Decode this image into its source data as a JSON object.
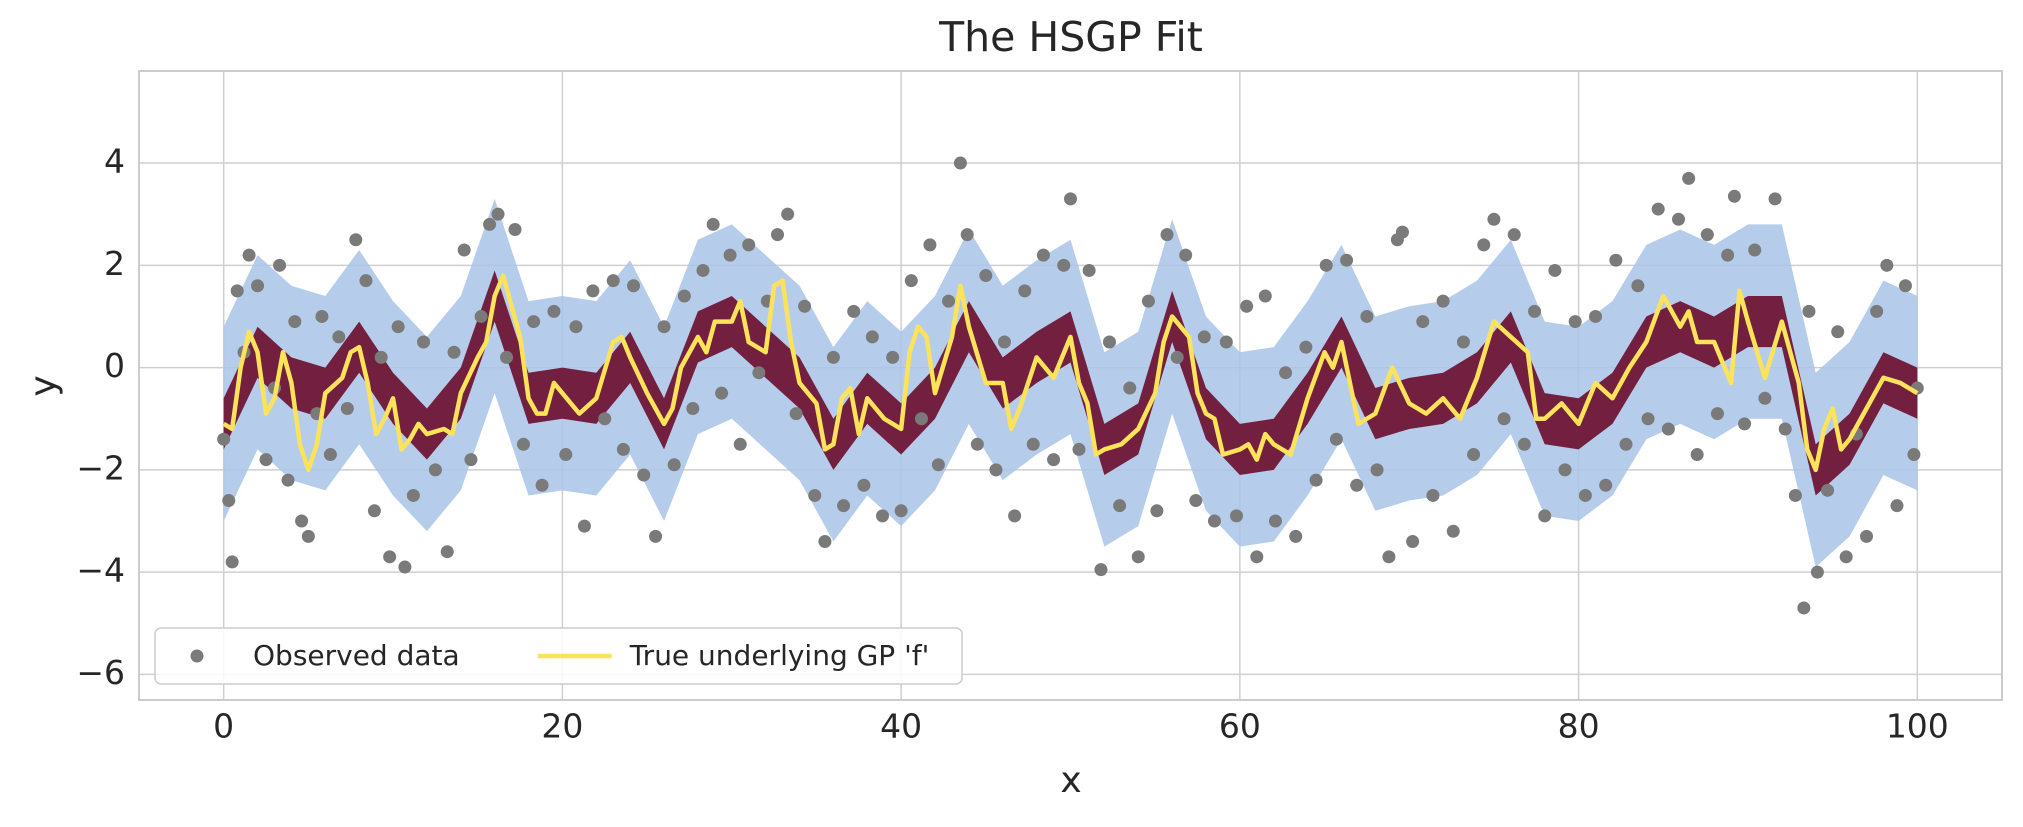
{
  "chart_data": {
    "type": "line",
    "title": "The HSGP Fit",
    "xlabel": "x",
    "ylabel": "y",
    "xlim": [
      -5,
      105
    ],
    "ylim": [
      -6.5,
      5.8
    ],
    "xticks": [
      0,
      20,
      40,
      60,
      80,
      100
    ],
    "yticks": [
      {
        "value": -6,
        "label": "−6"
      },
      {
        "value": -4,
        "label": "−4"
      },
      {
        "value": -2,
        "label": "−2"
      },
      0,
      2,
      4
    ],
    "grid": true,
    "legend": "lower left",
    "bands": [
      {
        "color": "#a9c3e8",
        "x": [
          0,
          2,
          4,
          6,
          8,
          10,
          12,
          14,
          16,
          18,
          20,
          22,
          24,
          26,
          28,
          30,
          32,
          34,
          36,
          38,
          40,
          42,
          44,
          46,
          48,
          50,
          52,
          54,
          56,
          58,
          60,
          62,
          64,
          66,
          68,
          70,
          72,
          74,
          76,
          78,
          80,
          82,
          84,
          86,
          88,
          90,
          92,
          94,
          96,
          98,
          100
        ],
        "lower": [
          -3.0,
          -1.6,
          -2.2,
          -2.4,
          -1.5,
          -2.5,
          -3.2,
          -2.4,
          -0.5,
          -2.5,
          -2.4,
          -2.5,
          -1.7,
          -3.0,
          -1.3,
          -1.0,
          -1.6,
          -2.2,
          -3.4,
          -2.5,
          -3.1,
          -2.4,
          -1.1,
          -2.2,
          -1.7,
          -1.3,
          -3.5,
          -3.1,
          -0.9,
          -2.8,
          -3.5,
          -3.4,
          -2.5,
          -1.4,
          -2.8,
          -2.6,
          -2.5,
          -2.1,
          -1.3,
          -2.9,
          -3.0,
          -2.5,
          -1.4,
          -1.1,
          -1.4,
          -1.0,
          -1.0,
          -3.9,
          -3.3,
          -2.1,
          -2.4
        ],
        "upper": [
          0.8,
          2.2,
          1.6,
          1.4,
          2.3,
          1.3,
          0.6,
          1.4,
          3.3,
          1.3,
          1.4,
          1.3,
          2.1,
          0.8,
          2.5,
          2.8,
          2.2,
          1.6,
          0.4,
          1.3,
          0.7,
          1.4,
          2.7,
          1.6,
          2.1,
          2.5,
          0.3,
          0.7,
          2.9,
          1.0,
          0.3,
          0.4,
          1.3,
          2.4,
          1.0,
          1.2,
          1.3,
          1.7,
          2.5,
          0.9,
          0.8,
          1.3,
          2.4,
          2.7,
          2.4,
          2.8,
          2.8,
          -0.1,
          0.5,
          1.7,
          1.4
        ]
      },
      {
        "color": "#6b0d2e",
        "x": [
          0,
          2,
          4,
          6,
          8,
          10,
          12,
          14,
          16,
          18,
          20,
          22,
          24,
          26,
          28,
          30,
          32,
          34,
          36,
          38,
          40,
          42,
          44,
          46,
          48,
          50,
          52,
          54,
          56,
          58,
          60,
          62,
          64,
          66,
          68,
          70,
          72,
          74,
          76,
          78,
          80,
          82,
          84,
          86,
          88,
          90,
          92,
          94,
          96,
          98,
          100
        ],
        "lower": [
          -1.6,
          -0.2,
          -0.8,
          -1.0,
          -0.1,
          -1.1,
          -1.8,
          -1.0,
          0.9,
          -1.1,
          -1.0,
          -1.1,
          -0.3,
          -1.6,
          0.1,
          0.4,
          -0.2,
          -0.8,
          -2.0,
          -1.1,
          -1.7,
          -1.0,
          0.3,
          -0.8,
          -0.3,
          0.1,
          -2.1,
          -1.7,
          0.5,
          -1.4,
          -2.1,
          -2.0,
          -1.1,
          0.0,
          -1.4,
          -1.2,
          -1.1,
          -0.7,
          0.1,
          -1.5,
          -1.6,
          -1.1,
          0.0,
          0.3,
          0.0,
          0.4,
          0.4,
          -2.5,
          -1.9,
          -0.7,
          -1.0
        ],
        "upper": [
          -0.6,
          0.8,
          0.2,
          0.0,
          0.9,
          -0.1,
          -0.8,
          0.0,
          1.9,
          -0.1,
          0.0,
          -0.1,
          0.7,
          -0.6,
          1.1,
          1.4,
          0.8,
          0.2,
          -1.0,
          -0.1,
          -0.7,
          0.0,
          1.3,
          0.2,
          0.7,
          1.1,
          -1.1,
          -0.7,
          1.5,
          -0.4,
          -1.1,
          -1.0,
          -0.1,
          1.0,
          -0.4,
          -0.2,
          -0.1,
          0.3,
          1.1,
          -0.5,
          -0.6,
          -0.1,
          1.0,
          1.3,
          1.0,
          1.4,
          1.4,
          -1.5,
          -0.9,
          0.3,
          0.0
        ]
      }
    ],
    "series": [
      {
        "name": "Observed data",
        "type": "scatter",
        "color": "#7a7a7a",
        "x": [
          0,
          0.3,
          0.5,
          0.8,
          1.2,
          1.5,
          2,
          2.5,
          3,
          3.3,
          3.8,
          4.2,
          4.6,
          5,
          5.5,
          5.8,
          6.3,
          6.8,
          7.3,
          7.8,
          8.4,
          8.9,
          9.3,
          9.8,
          10.3,
          10.7,
          11.2,
          11.8,
          12.5,
          13.2,
          13.6,
          14.2,
          14.6,
          15.2,
          15.7,
          16.2,
          16.7,
          17.2,
          17.7,
          18.3,
          18.8,
          19.5,
          20.2,
          20.8,
          21.3,
          21.8,
          22.5,
          23,
          23.6,
          24.2,
          24.8,
          25.5,
          26,
          26.6,
          27.2,
          27.7,
          28.3,
          28.9,
          29.4,
          29.9,
          30.5,
          31,
          31.6,
          32.1,
          32.7,
          33.3,
          33.8,
          34.3,
          34.9,
          35.5,
          36,
          36.6,
          37.2,
          37.8,
          38.3,
          38.9,
          39.5,
          40,
          40.6,
          41.2,
          41.7,
          42.2,
          42.8,
          43.5,
          43.9,
          44.5,
          45,
          45.6,
          46.1,
          46.7,
          47.3,
          47.8,
          48.4,
          49,
          49.6,
          50,
          50.5,
          51.1,
          51.8,
          52.3,
          52.9,
          53.5,
          54,
          54.6,
          55.1,
          55.7,
          56.3,
          56.8,
          57.4,
          57.9,
          58.5,
          59.2,
          59.8,
          60.4,
          61,
          61.5,
          62.1,
          62.7,
          63.3,
          63.9,
          64.5,
          65.1,
          65.7,
          66.3,
          66.9,
          67.5,
          68.1,
          68.8,
          69.3,
          69.6,
          70.2,
          70.8,
          71.4,
          72,
          72.6,
          73.2,
          73.8,
          74.4,
          75,
          75.6,
          76.2,
          76.8,
          77.4,
          78,
          78.6,
          79.2,
          79.8,
          80.4,
          81,
          81.6,
          82.2,
          82.8,
          83.5,
          84.1,
          84.7,
          85.3,
          85.9,
          86.5,
          87,
          87.6,
          88.2,
          88.8,
          89.2,
          89.8,
          90.4,
          91,
          91.6,
          92.2,
          92.8,
          93.3,
          93.6,
          94.1,
          94.7,
          95.3,
          95.8,
          96.4,
          97,
          97.6,
          98.2,
          98.8,
          99.3,
          99.8,
          100
        ],
        "values": [
          -1.4,
          -2.6,
          -3.8,
          1.5,
          0.3,
          2.2,
          1.6,
          -1.8,
          -0.4,
          2.0,
          -2.2,
          0.9,
          -3.0,
          -3.3,
          -0.9,
          1.0,
          -1.7,
          0.6,
          -0.8,
          2.5,
          1.7,
          -2.8,
          0.2,
          -3.7,
          0.8,
          -3.9,
          -2.5,
          0.5,
          -2.0,
          -3.6,
          0.3,
          2.3,
          -1.8,
          1.0,
          2.8,
          3.0,
          0.2,
          2.7,
          -1.5,
          0.9,
          -2.3,
          1.1,
          -1.7,
          0.8,
          -3.1,
          1.5,
          -1.0,
          1.7,
          -1.6,
          1.6,
          -2.1,
          -3.3,
          0.8,
          -1.9,
          1.4,
          -0.8,
          1.9,
          2.8,
          -0.5,
          2.2,
          -1.5,
          2.4,
          -0.1,
          1.3,
          2.6,
          3.0,
          -0.9,
          1.2,
          -2.5,
          -3.4,
          0.2,
          -2.7,
          1.1,
          -2.3,
          0.6,
          -2.9,
          0.2,
          -2.8,
          1.7,
          -1.0,
          2.4,
          -1.9,
          1.3,
          4.0,
          2.6,
          -1.5,
          1.8,
          -2.0,
          0.5,
          -2.9,
          1.5,
          -1.5,
          2.2,
          -1.8,
          2.0,
          3.3,
          -1.6,
          1.9,
          -3.95,
          0.5,
          -2.7,
          -0.4,
          -3.7,
          1.3,
          -2.8,
          2.6,
          0.2,
          2.2,
          -2.6,
          0.6,
          -3.0,
          0.5,
          -2.9,
          1.2,
          -3.7,
          1.4,
          -3.0,
          -0.1,
          -3.3,
          0.4,
          -2.2,
          2.0,
          -1.4,
          2.1,
          -2.3,
          1.0,
          -2.0,
          -3.7,
          2.5,
          2.65,
          -3.4,
          0.9,
          -2.5,
          1.3,
          -3.2,
          0.5,
          -1.7,
          2.4,
          2.9,
          -1.0,
          2.6,
          -1.5,
          1.1,
          -2.9,
          1.9,
          -2.0,
          0.9,
          -2.5,
          1.0,
          -2.3,
          2.1,
          -1.5,
          1.6,
          -1.0,
          3.1,
          -1.2,
          2.9,
          3.7,
          -1.7,
          2.6,
          -0.9,
          2.2,
          3.35,
          -1.1,
          2.3,
          -0.6,
          3.3,
          -1.2,
          -2.5,
          -4.7,
          1.1,
          -4.0,
          -2.4,
          0.7,
          -3.7,
          -1.3,
          -3.3,
          1.1,
          2.0,
          -2.7,
          1.6,
          -1.7,
          -0.4
        ]
      },
      {
        "name": "True underlying GP 'f'",
        "type": "line",
        "color": "#fde35a",
        "x": [
          0,
          0.5,
          1,
          1.5,
          2,
          2.5,
          3,
          3.5,
          4,
          4.5,
          5,
          5.5,
          6,
          7,
          7.5,
          8,
          8.5,
          9,
          9.5,
          10,
          10.5,
          11,
          11.5,
          12,
          13,
          13.5,
          14,
          15,
          15.5,
          16,
          16.5,
          17,
          17.5,
          18,
          18.5,
          19,
          19.5,
          20,
          21,
          22,
          23,
          23.5,
          24,
          25,
          26,
          26.5,
          27,
          28,
          28.5,
          29,
          30,
          30.5,
          31,
          32,
          32.5,
          33,
          33.5,
          34,
          35,
          35.5,
          36,
          36.5,
          37,
          37.5,
          38,
          39,
          40,
          40.5,
          41,
          41.5,
          42,
          43,
          43.5,
          44,
          45,
          46,
          46.5,
          47,
          48,
          49,
          50,
          50.5,
          51,
          51.5,
          52,
          53,
          54,
          55,
          55.5,
          56,
          56.5,
          57,
          57.5,
          58,
          58.5,
          59,
          60,
          60.5,
          61,
          61.5,
          62,
          62.5,
          63,
          64,
          65,
          65.5,
          66,
          66.5,
          67,
          68,
          69,
          70,
          71,
          72,
          73,
          74,
          75,
          76,
          77,
          77.5,
          78,
          79,
          80,
          81,
          82,
          83,
          84,
          85,
          86,
          86.5,
          87,
          88,
          89,
          89.5,
          90,
          91,
          92,
          93,
          93.5,
          94,
          94.5,
          95,
          95.5,
          96,
          97,
          98,
          99,
          100
        ],
        "values": [
          -1.1,
          -1.2,
          0.0,
          0.7,
          0.3,
          -0.9,
          -0.6,
          0.3,
          -0.3,
          -1.5,
          -2.0,
          -1.5,
          -0.5,
          -0.2,
          0.3,
          0.4,
          -0.3,
          -1.3,
          -1.0,
          -0.6,
          -1.6,
          -1.4,
          -1.1,
          -1.3,
          -1.2,
          -1.3,
          -0.5,
          0.2,
          0.5,
          1.4,
          1.8,
          1.2,
          0.6,
          -0.6,
          -0.9,
          -0.9,
          -0.3,
          -0.5,
          -0.9,
          -0.6,
          0.5,
          0.6,
          0.2,
          -0.5,
          -1.1,
          -0.8,
          0.0,
          0.6,
          0.3,
          0.9,
          0.9,
          1.3,
          0.5,
          0.3,
          1.6,
          1.7,
          0.5,
          -0.3,
          -0.7,
          -1.6,
          -1.5,
          -0.6,
          -0.4,
          -1.3,
          -0.6,
          -1.0,
          -1.2,
          0.3,
          0.8,
          0.6,
          -0.5,
          0.6,
          1.6,
          0.8,
          -0.3,
          -0.3,
          -1.2,
          -0.8,
          0.2,
          -0.2,
          0.6,
          -0.3,
          -0.7,
          -1.7,
          -1.6,
          -1.5,
          -1.2,
          -0.5,
          0.5,
          1.0,
          0.8,
          0.6,
          -0.5,
          -0.9,
          -1.0,
          -1.7,
          -1.6,
          -1.5,
          -1.8,
          -1.3,
          -1.5,
          -1.6,
          -1.7,
          -0.6,
          0.3,
          0.0,
          0.5,
          -0.3,
          -1.1,
          -0.9,
          0.0,
          -0.7,
          -0.9,
          -0.6,
          -1.0,
          -0.2,
          0.9,
          0.6,
          0.3,
          -1.0,
          -1.0,
          -0.7,
          -1.1,
          -0.3,
          -0.6,
          0.0,
          0.5,
          1.4,
          0.8,
          1.1,
          0.5,
          0.5,
          -0.3,
          1.5,
          0.9,
          -0.2,
          0.9,
          -0.3,
          -1.6,
          -2.0,
          -1.2,
          -0.8,
          -1.6,
          -1.4,
          -0.8,
          -0.2,
          -0.3,
          -0.5
        ]
      }
    ]
  }
}
